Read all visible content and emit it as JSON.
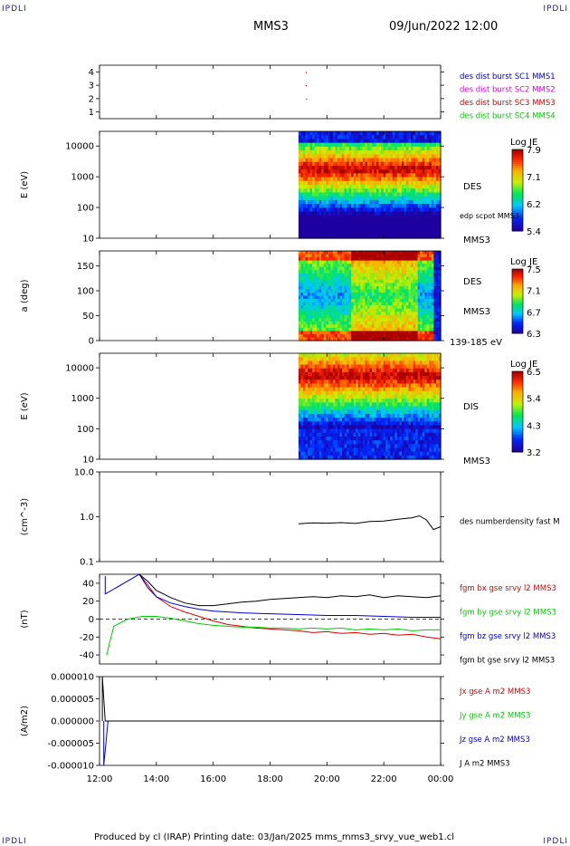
{
  "corners": {
    "tl": "IPDLI",
    "tr": "IPDLI",
    "bl": "IPDLI",
    "br": "IPDLI"
  },
  "header": {
    "spacecraft": "MMS3",
    "datetime": "09/Jun/2022 12:00"
  },
  "footer": {
    "text": "Produced by cl (IRAP)   Printing date: 03/Jan/2025   mms_mms3_srvy_vue_web1.cl"
  },
  "colors": {
    "red": "#dd0000",
    "green": "#00cc00",
    "blue": "#0000cc",
    "magenta": "#dd00dd",
    "black": "#000000"
  },
  "time_axis": {
    "ticks": [
      "12:00",
      "14:00",
      "16:00",
      "18:00",
      "20:00",
      "22:00",
      "00:00"
    ],
    "range_hours": [
      12,
      24
    ]
  },
  "chart_data": [
    {
      "id": "burst",
      "type": "scatter",
      "y_ticks": [
        "4",
        "3",
        "2",
        "1"
      ],
      "ylim": [
        0.5,
        4.5
      ],
      "series": [
        {
          "name": "des dist burst SC1 MMS1",
          "color": "#0000cc",
          "x": [],
          "y": []
        },
        {
          "name": "des dist burst SC2 MMS2",
          "color": "#dd00dd",
          "x": [],
          "y": []
        },
        {
          "name": "des dist burst SC3 MMS3",
          "color": "#dd0000",
          "x": [
            19.25,
            19.25,
            19.27
          ],
          "y": [
            4,
            3,
            2
          ]
        },
        {
          "name": "des dist burst SC4 MMS4",
          "color": "#00cc00",
          "x": [],
          "y": []
        }
      ]
    },
    {
      "id": "des-energy",
      "type": "heatmap",
      "ylabel": "E (eV)",
      "y_ticks": [
        "10000",
        "1000",
        "100",
        "10"
      ],
      "ylim": [
        10,
        30000
      ],
      "yscale": "log",
      "data_start_hour": 19.0,
      "side_labels": [
        "DES",
        "edp scpot MMS3",
        "MMS3"
      ],
      "colorbar": {
        "title": "Log JE",
        "ticks": [
          "7.9",
          "7.1",
          "6.2",
          "5.4"
        ],
        "range": [
          5.4,
          7.9
        ]
      }
    },
    {
      "id": "des-pitch",
      "type": "heatmap",
      "ylabel": "a (deg)",
      "y_ticks": [
        "150",
        "100",
        "50",
        "0"
      ],
      "ylim": [
        0,
        180
      ],
      "data_start_hour": 19.0,
      "side_labels": [
        "DES",
        "MMS3",
        "139-185 eV"
      ],
      "colorbar": {
        "title": "Log JE",
        "ticks": [
          "7.5",
          "7.1",
          "6.7",
          "6.3"
        ],
        "range": [
          6.3,
          7.5
        ]
      }
    },
    {
      "id": "dis-energy",
      "type": "heatmap",
      "ylabel": "E (eV)",
      "y_ticks": [
        "10000",
        "1000",
        "100",
        "10"
      ],
      "ylim": [
        10,
        30000
      ],
      "yscale": "log",
      "data_start_hour": 19.0,
      "side_labels": [
        "DIS",
        "MMS3"
      ],
      "colorbar": {
        "title": "Log JE",
        "ticks": [
          "6.5",
          "5.4",
          "4.3",
          "3.2"
        ],
        "range": [
          3.2,
          6.5
        ]
      }
    },
    {
      "id": "density",
      "type": "line",
      "ylabel": "(cm^-3)",
      "y_ticks": [
        "10.0",
        "1.0",
        "0.1"
      ],
      "ylim": [
        0.1,
        10
      ],
      "yscale": "log",
      "series": [
        {
          "name": "des numberdensity fast M",
          "color": "#000000",
          "x": [
            19.0,
            19.5,
            20.0,
            20.5,
            21.0,
            21.5,
            22.0,
            22.5,
            23.0,
            23.25,
            23.5,
            23.75,
            24.0
          ],
          "y": [
            0.7,
            0.73,
            0.72,
            0.74,
            0.71,
            0.78,
            0.8,
            0.88,
            0.95,
            1.05,
            0.85,
            0.52,
            0.6
          ]
        }
      ]
    },
    {
      "id": "fgm",
      "type": "line",
      "ylabel": "(nT)",
      "y_ticks": [
        "40",
        "20",
        "0",
        "-20",
        "-40"
      ],
      "ylim": [
        -50,
        50
      ],
      "series": [
        {
          "name": "fgm bx gse srvy l2 MMS3",
          "color": "#dd0000",
          "x": [
            13.4,
            13.7,
            14.0,
            14.5,
            15.0,
            15.5,
            16.0,
            16.5,
            17.0,
            17.5,
            18.0,
            18.5,
            19.0,
            19.5,
            20.0,
            20.5,
            21.0,
            21.5,
            22.0,
            22.5,
            23.0,
            23.5,
            24.0
          ],
          "y": [
            50,
            38,
            25,
            14,
            8,
            3,
            -2,
            -6,
            -8,
            -10,
            -11,
            -12,
            -13,
            -15,
            -14,
            -16,
            -15,
            -17,
            -16,
            -18,
            -17,
            -20,
            -22
          ]
        },
        {
          "name": "fgm by gse srvy l2 MMS3",
          "color": "#00cc00",
          "x": [
            12.25,
            12.5,
            13.0,
            13.5,
            14.0,
            14.5,
            15.0,
            15.5,
            16.0,
            16.5,
            17.0,
            17.5,
            18.0,
            18.5,
            19.0,
            19.5,
            20.0,
            20.5,
            21.0,
            21.5,
            22.0,
            22.5,
            23.0,
            23.5,
            24.0
          ],
          "y": [
            -40,
            -8,
            0,
            3,
            3,
            1,
            -2,
            -5,
            -7,
            -8,
            -9,
            -9,
            -10,
            -10,
            -11,
            -10,
            -11,
            -10,
            -12,
            -11,
            -12,
            -11,
            -13,
            -12,
            -12
          ]
        },
        {
          "name": "fgm bz gse srvy l2 MMS3",
          "color": "#0000cc",
          "x": [
            12.2,
            12.2,
            13.4,
            13.7,
            14.0,
            14.5,
            15.0,
            15.5,
            16.0,
            17.0,
            18.0,
            19.0,
            20.0,
            21.0,
            22.0,
            23.0,
            24.0
          ],
          "y": [
            48,
            28,
            50,
            35,
            25,
            18,
            14,
            11,
            9,
            7,
            6,
            5,
            4,
            4,
            3,
            2,
            2
          ]
        },
        {
          "name": "fgm bt gse srvy l2 MMS3",
          "color": "#000000",
          "x": [
            13.4,
            13.7,
            14.0,
            14.5,
            15.0,
            15.5,
            16.0,
            16.5,
            17.0,
            17.5,
            18.0,
            18.5,
            19.0,
            19.5,
            20.0,
            20.5,
            21.0,
            21.5,
            22.0,
            22.5,
            23.0,
            23.5,
            24.0
          ],
          "y": [
            50,
            42,
            32,
            24,
            18,
            15,
            15,
            17,
            19,
            20,
            22,
            23,
            24,
            25,
            24,
            26,
            25,
            27,
            24,
            26,
            25,
            24,
            26
          ]
        }
      ]
    },
    {
      "id": "current",
      "type": "line",
      "ylabel": "(A/m2)",
      "y_ticks": [
        "0.000010",
        "0.000005",
        "0.000000",
        "-0.000005",
        "-0.000010"
      ],
      "ylim": [
        -1e-05,
        1e-05
      ],
      "series": [
        {
          "name": "Jx gse A m2 MMS3",
          "color": "#dd0000",
          "x": [
            12.3,
            24.0
          ],
          "y": [
            0,
            0
          ]
        },
        {
          "name": "Jy gse A m2 MMS3",
          "color": "#00cc00",
          "x": [
            12.3,
            24.0
          ],
          "y": [
            0,
            0
          ]
        },
        {
          "name": "Jz gse A m2 MMS3",
          "color": "#0000cc",
          "x": [
            12.15,
            12.15,
            12.3,
            24.0
          ],
          "y": [
            0,
            -1e-05,
            0,
            0
          ]
        },
        {
          "name": "J A m2 MMS3",
          "color": "#000000",
          "x": [
            12.1,
            12.1,
            12.2,
            24.0
          ],
          "y": [
            0,
            1e-05,
            0,
            0
          ]
        }
      ]
    }
  ]
}
